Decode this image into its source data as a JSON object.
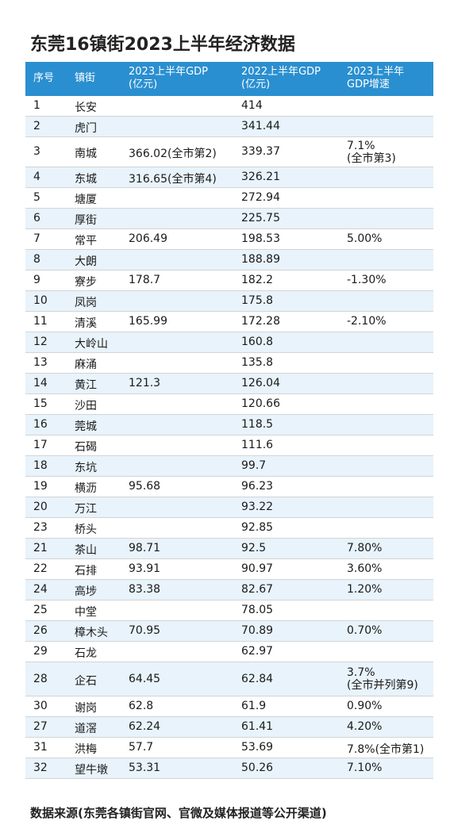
{
  "title": "东莞16镇街2023上半年经济数据",
  "headers": {
    "seq": "序号",
    "town": "镇街",
    "gdp2023": [
      "2023上半年GDP",
      "(亿元)"
    ],
    "gdp2022": [
      "2022上半年GDP",
      "(亿元)"
    ],
    "growth": [
      "2023上半年",
      "GDP增速"
    ]
  },
  "rows": [
    {
      "seq": "1",
      "town": "长安",
      "gdp2023": "",
      "gdp2022": "414",
      "growth": ""
    },
    {
      "seq": "2",
      "town": "虎门",
      "gdp2023": "",
      "gdp2022": "341.44",
      "growth": ""
    },
    {
      "seq": "3",
      "town": "南城",
      "gdp2023": "366.02(全市第2)",
      "gdp2022": "339.37",
      "growth": "7.1%",
      "growth2": "(全市第3)"
    },
    {
      "seq": "4",
      "town": "东城",
      "gdp2023": "316.65(全市第4)",
      "gdp2022": "326.21",
      "growth": ""
    },
    {
      "seq": "5",
      "town": "塘厦",
      "gdp2023": "",
      "gdp2022": "272.94",
      "growth": ""
    },
    {
      "seq": "6",
      "town": "厚街",
      "gdp2023": "",
      "gdp2022": "225.75",
      "growth": ""
    },
    {
      "seq": "7",
      "town": "常平",
      "gdp2023": "206.49",
      "gdp2022": "198.53",
      "growth": "5.00%"
    },
    {
      "seq": "8",
      "town": "大朗",
      "gdp2023": "",
      "gdp2022": "188.89",
      "growth": ""
    },
    {
      "seq": "9",
      "town": "寮步",
      "gdp2023": "178.7",
      "gdp2022": "182.2",
      "growth": "-1.30%"
    },
    {
      "seq": "10",
      "town": "凤岗",
      "gdp2023": "",
      "gdp2022": "175.8",
      "growth": ""
    },
    {
      "seq": "11",
      "town": "清溪",
      "gdp2023": "165.99",
      "gdp2022": "172.28",
      "growth": "-2.10%"
    },
    {
      "seq": "12",
      "town": "大岭山",
      "gdp2023": "",
      "gdp2022": "160.8",
      "growth": ""
    },
    {
      "seq": "13",
      "town": "麻涌",
      "gdp2023": "",
      "gdp2022": "135.8",
      "growth": ""
    },
    {
      "seq": "14",
      "town": "黄江",
      "gdp2023": "121.3",
      "gdp2022": "126.04",
      "growth": ""
    },
    {
      "seq": "15",
      "town": "沙田",
      "gdp2023": "",
      "gdp2022": "120.66",
      "growth": ""
    },
    {
      "seq": "16",
      "town": "莞城",
      "gdp2023": "",
      "gdp2022": "118.5",
      "growth": ""
    },
    {
      "seq": "17",
      "town": "石碣",
      "gdp2023": "",
      "gdp2022": "111.6",
      "growth": ""
    },
    {
      "seq": "18",
      "town": "东坑",
      "gdp2023": "",
      "gdp2022": "99.7",
      "growth": ""
    },
    {
      "seq": "19",
      "town": "横沥",
      "gdp2023": "95.68",
      "gdp2022": "96.23",
      "growth": ""
    },
    {
      "seq": "20",
      "town": "万江",
      "gdp2023": "",
      "gdp2022": "93.22",
      "growth": ""
    },
    {
      "seq": "23",
      "town": "桥头",
      "gdp2023": "",
      "gdp2022": "92.85",
      "growth": ""
    },
    {
      "seq": "21",
      "town": "茶山",
      "gdp2023": "98.71",
      "gdp2022": "92.5",
      "growth": "7.80%"
    },
    {
      "seq": "22",
      "town": "石排",
      "gdp2023": "93.91",
      "gdp2022": "90.97",
      "growth": "3.60%"
    },
    {
      "seq": "24",
      "town": "高埗",
      "gdp2023": "83.38",
      "gdp2022": "82.67",
      "growth": "1.20%"
    },
    {
      "seq": "25",
      "town": "中堂",
      "gdp2023": "",
      "gdp2022": "78.05",
      "growth": ""
    },
    {
      "seq": "26",
      "town": "樟木头",
      "gdp2023": "70.95",
      "gdp2022": "70.89",
      "growth": "0.70%"
    },
    {
      "seq": "29",
      "town": "石龙",
      "gdp2023": "",
      "gdp2022": "62.97",
      "growth": ""
    },
    {
      "seq": "28",
      "town": "企石",
      "gdp2023": "64.45",
      "gdp2022": "62.84",
      "growth": "3.7%",
      "growth2": "(全市并列第9)"
    },
    {
      "seq": "30",
      "town": "谢岗",
      "gdp2023": "62.8",
      "gdp2022": "61.9",
      "growth": "0.90%"
    },
    {
      "seq": "27",
      "town": "道滘",
      "gdp2023": "62.24",
      "gdp2022": "61.41",
      "growth": "4.20%"
    },
    {
      "seq": "31",
      "town": "洪梅",
      "gdp2023": "57.7",
      "gdp2022": "53.69",
      "growth": "7.8%(全市第1)"
    },
    {
      "seq": "32",
      "town": "望牛墩",
      "gdp2023": "53.31",
      "gdp2022": "50.26",
      "growth": "7.10%"
    }
  ],
  "footer": "数据来源(东莞各镇街官网、官微及媒体报道等公开渠道)"
}
